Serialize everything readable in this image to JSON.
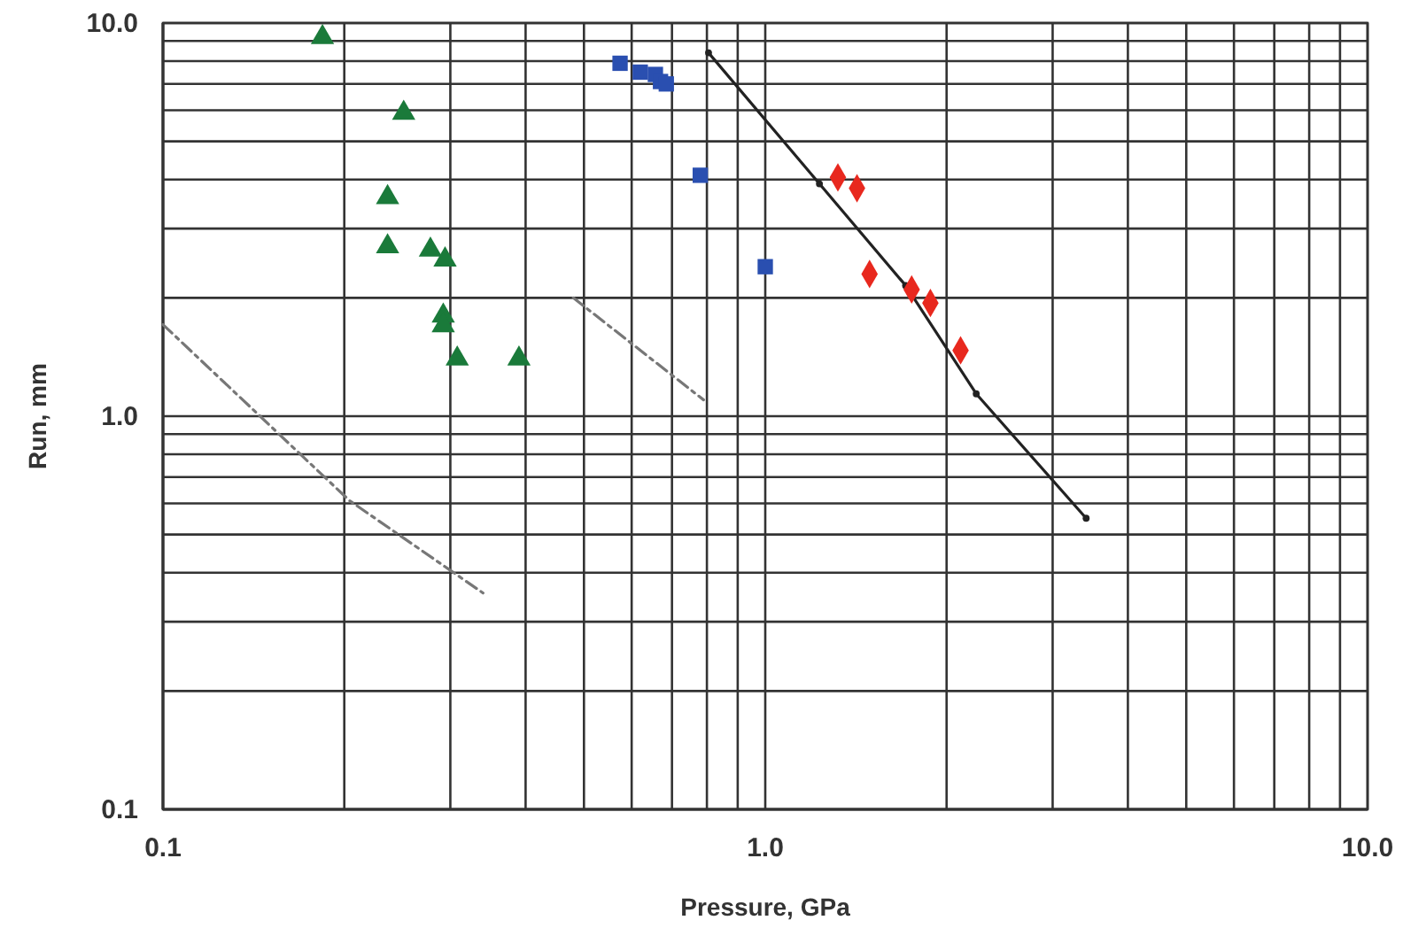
{
  "chart_data": {
    "type": "scatter",
    "xlabel": "Pressure, GPa",
    "ylabel": "Run, mm",
    "log": "xy",
    "grid": true,
    "xlim": [
      0.1,
      10
    ],
    "ylim": [
      0.1,
      10
    ],
    "xticks": [
      {
        "value": 0.1,
        "label": "0.1"
      },
      {
        "value": 0.2,
        "label": null
      },
      {
        "value": 0.3,
        "label": null
      },
      {
        "value": 0.4,
        "label": null
      },
      {
        "value": 0.5,
        "label": null
      },
      {
        "value": 0.6,
        "label": null
      },
      {
        "value": 0.7,
        "label": null
      },
      {
        "value": 0.8,
        "label": null
      },
      {
        "value": 0.9,
        "label": null
      },
      {
        "value": 1,
        "label": "1.0"
      },
      {
        "value": 2,
        "label": null
      },
      {
        "value": 3,
        "label": null
      },
      {
        "value": 4,
        "label": null
      },
      {
        "value": 5,
        "label": null
      },
      {
        "value": 6,
        "label": null
      },
      {
        "value": 7,
        "label": null
      },
      {
        "value": 8,
        "label": null
      },
      {
        "value": 9,
        "label": null
      },
      {
        "value": 10,
        "label": "10.0"
      }
    ],
    "yticks": [
      {
        "value": 0.1,
        "label": "0.1"
      },
      {
        "value": 0.2,
        "label": null
      },
      {
        "value": 0.3,
        "label": null
      },
      {
        "value": 0.4,
        "label": null
      },
      {
        "value": 0.5,
        "label": null
      },
      {
        "value": 0.6,
        "label": null
      },
      {
        "value": 0.7,
        "label": null
      },
      {
        "value": 0.8,
        "label": null
      },
      {
        "value": 0.9,
        "label": null
      },
      {
        "value": 1,
        "label": "1.0"
      },
      {
        "value": 2,
        "label": null
      },
      {
        "value": 3,
        "label": null
      },
      {
        "value": 4,
        "label": null
      },
      {
        "value": 5,
        "label": null
      },
      {
        "value": 6,
        "label": null
      },
      {
        "value": 7,
        "label": null
      },
      {
        "value": 8,
        "label": null
      },
      {
        "value": 9,
        "label": null
      },
      {
        "value": 10,
        "label": "10.0"
      }
    ],
    "series": [
      {
        "type": "line",
        "color": "#777777",
        "line_style": "dashed",
        "marker": "none",
        "x": [
          0.1,
          0.204,
          0.34
        ],
        "values": [
          1.71,
          0.61,
          0.355
        ]
      },
      {
        "type": "line",
        "color": "#777777",
        "line_style": "dashed",
        "marker": "none",
        "x": [
          0.48,
          0.79
        ],
        "values": [
          2.0,
          1.1
        ]
      },
      {
        "type": "line",
        "color": "#222222",
        "line_style": "solid",
        "marker": "circle",
        "x": [
          0.805,
          1.23,
          1.71,
          2.24,
          3.41
        ],
        "values": [
          8.4,
          3.9,
          2.15,
          1.14,
          0.55
        ]
      },
      {
        "color": "#1a7a3a",
        "marker": "triangle",
        "x": [
          0.184,
          0.251,
          0.236,
          0.236,
          0.278,
          0.294,
          0.292,
          0.292,
          0.308,
          0.39
        ],
        "values": [
          9.2,
          5.9,
          3.6,
          2.7,
          2.65,
          2.5,
          1.8,
          1.7,
          1.4,
          1.4
        ]
      },
      {
        "color": "#2a4fb0",
        "marker": "square",
        "x": [
          0.574,
          0.62,
          0.657,
          0.67,
          0.685,
          0.78,
          1.0
        ],
        "values": [
          7.9,
          7.5,
          7.4,
          7.1,
          7.0,
          4.1,
          2.4
        ]
      },
      {
        "color": "#e8281e",
        "marker": "diamond",
        "x": [
          1.32,
          1.42,
          1.49,
          1.75,
          1.88,
          2.11
        ],
        "values": [
          4.05,
          3.8,
          2.3,
          2.1,
          1.94,
          1.47
        ]
      }
    ]
  }
}
